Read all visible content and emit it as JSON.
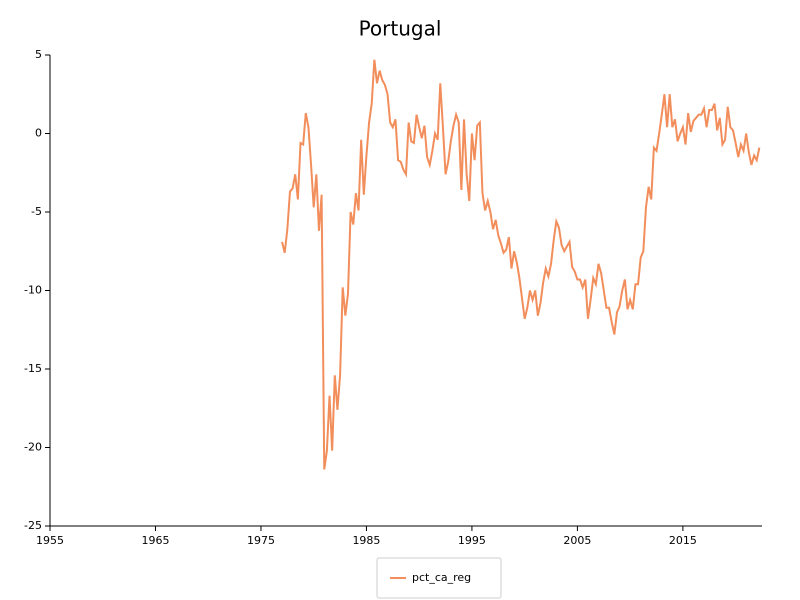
{
  "chart_data": {
    "type": "line",
    "title": "Portugal",
    "x": [
      1977,
      1977.25,
      1977.5,
      1977.75,
      1978,
      1978.25,
      1978.5,
      1978.75,
      1979,
      1979.25,
      1979.5,
      1979.75,
      1980,
      1980.25,
      1980.5,
      1980.75,
      1981,
      1981.25,
      1981.5,
      1981.75,
      1982,
      1982.25,
      1982.5,
      1982.75,
      1983,
      1983.25,
      1983.5,
      1983.75,
      1984,
      1984.25,
      1984.5,
      1984.75,
      1985,
      1985.25,
      1985.5,
      1985.75,
      1986,
      1986.25,
      1986.5,
      1986.75,
      1987,
      1987.25,
      1987.5,
      1987.75,
      1988,
      1988.25,
      1988.5,
      1988.75,
      1989,
      1989.25,
      1989.5,
      1989.75,
      1990,
      1990.25,
      1990.5,
      1990.75,
      1991,
      1991.25,
      1991.5,
      1991.75,
      1992,
      1992.25,
      1992.5,
      1992.75,
      1993,
      1993.25,
      1993.5,
      1993.75,
      1994,
      1994.25,
      1994.5,
      1994.75,
      1995,
      1995.25,
      1995.5,
      1995.75,
      1996,
      1996.25,
      1996.5,
      1996.75,
      1997,
      1997.25,
      1997.5,
      1997.75,
      1998,
      1998.25,
      1998.5,
      1998.75,
      1999,
      1999.25,
      1999.5,
      1999.75,
      2000,
      2000.25,
      2000.5,
      2000.75,
      2001,
      2001.25,
      2001.5,
      2001.75,
      2002,
      2002.25,
      2002.5,
      2002.75,
      2003,
      2003.25,
      2003.5,
      2003.75,
      2004,
      2004.25,
      2004.5,
      2004.75,
      2005,
      2005.25,
      2005.5,
      2005.75,
      2006,
      2006.25,
      2006.5,
      2006.75,
      2007,
      2007.25,
      2007.5,
      2007.75,
      2008,
      2008.25,
      2008.5,
      2008.75,
      2009,
      2009.25,
      2009.5,
      2009.75,
      2010,
      2010.25,
      2010.5,
      2010.75,
      2011,
      2011.25,
      2011.5,
      2011.75,
      2012,
      2012.25,
      2012.5,
      2012.75,
      2013,
      2013.25,
      2013.5,
      2013.75,
      2014,
      2014.25,
      2014.5,
      2014.75,
      2015,
      2015.25,
      2015.5,
      2015.75,
      2016,
      2016.25,
      2016.5,
      2016.75,
      2017,
      2017.25,
      2017.5,
      2017.75,
      2018,
      2018.25,
      2018.5,
      2018.75,
      2019,
      2019.25,
      2019.5,
      2019.75,
      2020,
      2020.25,
      2020.5,
      2020.75,
      2021,
      2021.25,
      2021.5,
      2021.75,
      2022,
      2022.25
    ],
    "series": [
      {
        "name": "pct_ca_reg",
        "color": "#f28e5c",
        "values": [
          -6.9,
          -7.6,
          -6.1,
          -3.7,
          -3.5,
          -2.6,
          -4.2,
          -0.6,
          -0.7,
          1.3,
          0.4,
          -2.0,
          -4.7,
          -2.6,
          -6.2,
          -3.9,
          -21.4,
          -20.2,
          -16.7,
          -20.2,
          -15.4,
          -17.6,
          -15.4,
          -9.8,
          -11.6,
          -10.2,
          -5.0,
          -5.8,
          -3.8,
          -4.9,
          -0.4,
          -3.9,
          -1.4,
          0.7,
          1.9,
          4.7,
          3.2,
          4.0,
          3.4,
          3.1,
          2.5,
          0.7,
          0.4,
          0.9,
          -1.7,
          -1.8,
          -2.3,
          -2.6,
          0.7,
          -0.5,
          -0.6,
          1.2,
          0.4,
          -0.3,
          0.5,
          -1.5,
          -2.0,
          -1.1,
          0.0,
          -0.4,
          3.2,
          0.4,
          -2.6,
          -1.8,
          -0.5,
          0.5,
          1.2,
          0.7,
          -3.6,
          0.9,
          -2.6,
          -4.3,
          0.0,
          -1.7,
          0.5,
          0.7,
          -3.8,
          -4.9,
          -4.3,
          -5.0,
          -6.1,
          -5.5,
          -6.5,
          -7.0,
          -7.6,
          -7.4,
          -6.6,
          -8.6,
          -7.5,
          -8.2,
          -9.2,
          -10.5,
          -11.8,
          -11.1,
          -10.0,
          -10.6,
          -10.0,
          -11.6,
          -10.8,
          -9.5,
          -8.6,
          -9.1,
          -8.3,
          -6.8,
          -5.6,
          -6.0,
          -7.1,
          -7.5,
          -7.2,
          -6.9,
          -8.5,
          -8.8,
          -9.3,
          -9.3,
          -9.8,
          -9.3,
          -11.8,
          -10.6,
          -9.2,
          -9.6,
          -8.3,
          -8.9,
          -10.0,
          -11.1,
          -11.1,
          -12.0,
          -12.8,
          -11.4,
          -11.0,
          -10.0,
          -9.3,
          -11.2,
          -10.6,
          -11.2,
          -9.6,
          -9.6,
          -7.9,
          -7.5,
          -4.7,
          -3.4,
          -4.2,
          -0.9,
          -1.1,
          0.0,
          1.2,
          2.5,
          0.4,
          2.5,
          0.4,
          0.9,
          -0.5,
          0.0,
          0.4,
          -0.7,
          1.3,
          0.1,
          0.8,
          1.0,
          1.2,
          1.2,
          1.6,
          0.4,
          1.5,
          1.5,
          1.9,
          0.2,
          1.0,
          -0.7,
          -0.4,
          1.7,
          0.4,
          0.2,
          -0.6,
          -1.5,
          -0.7,
          -1.1,
          0.0,
          -1.2,
          -2.0,
          -1.4,
          -1.7,
          -0.9
        ]
      }
    ],
    "xlim": [
      1955,
      2022.5
    ],
    "xticks": [
      1955,
      1965,
      1975,
      1985,
      1995,
      2005,
      2015
    ],
    "ylim": [
      -25,
      5
    ],
    "yticks": [
      -25,
      -20,
      -15,
      -10,
      -5,
      0,
      5
    ],
    "legend": "bottom"
  }
}
